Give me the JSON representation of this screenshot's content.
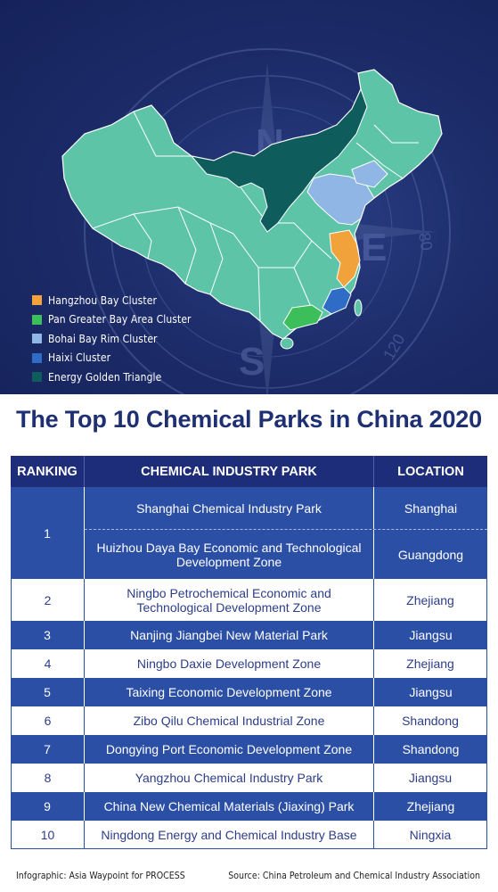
{
  "colors": {
    "hangzhou": "#f2a23a",
    "pan_greater_bay": "#3cbf5a",
    "bohai": "#8fb6e4",
    "haixi": "#2f6cc6",
    "energy_triangle": "#0f5c5c",
    "other_province": "#5ec4a8",
    "header_blue": "#1d2d7a",
    "row_blue": "#2c4fa6",
    "title": "#1e2f73"
  },
  "map": {
    "compass_letters": [
      "N",
      "E",
      "S"
    ],
    "compass_numbers": [
      "80",
      "120",
      "160",
      "200",
      "1"
    ]
  },
  "legend": [
    {
      "label": "Hangzhou Bay Cluster",
      "color": "#f2a23a"
    },
    {
      "label": "Pan Greater Bay Area Cluster",
      "color": "#3cbf5a"
    },
    {
      "label": "Bohai Bay Rim Cluster",
      "color": "#8fb6e4"
    },
    {
      "label": "Haixi Cluster",
      "color": "#2f6cc6"
    },
    {
      "label": "Energy Golden Triangle",
      "color": "#0f5c5c"
    }
  ],
  "title": "The Top 10 Chemical Parks in China 2020",
  "table": {
    "headers": {
      "rank": "RANKING",
      "park": "CHEMICAL INDUSTRY PARK",
      "location": "LOCATION"
    },
    "rank1": {
      "rank": "1",
      "entries": [
        {
          "park": "Shanghai Chemical Industry Park",
          "location": "Shanghai"
        },
        {
          "park": "Huizhou Daya Bay Economic and Technological Development Zone",
          "location": "Guangdong"
        }
      ]
    },
    "rows": [
      {
        "rank": "2",
        "park": "Ningbo Petrochemical Economic and Technological Development Zone",
        "location": "Zhejiang"
      },
      {
        "rank": "3",
        "park": "Nanjing Jiangbei New Material Park",
        "location": "Jiangsu"
      },
      {
        "rank": "4",
        "park": "Ningbo Daxie Development Zone",
        "location": "Zhejiang"
      },
      {
        "rank": "5",
        "park": "Taixing Economic Development Zone",
        "location": "Jiangsu"
      },
      {
        "rank": "6",
        "park": "Zibo Qilu Chemical Industrial Zone",
        "location": "Shandong"
      },
      {
        "rank": "7",
        "park": "Dongying Port Economic Development Zone",
        "location": "Shandong"
      },
      {
        "rank": "8",
        "park": "Yangzhou Chemical Industry Park",
        "location": "Jiangsu"
      },
      {
        "rank": "9",
        "park": "China New Chemical Materials (Jiaxing) Park",
        "location": "Zhejiang"
      },
      {
        "rank": "10",
        "park": "Ningdong Energy and Chemical Industry Base",
        "location": "Ningxia"
      }
    ]
  },
  "footer": {
    "left": "Infographic: Asia Waypoint for PROCESS",
    "right": "Source: China Petroleum and Chemical Industry Association"
  }
}
